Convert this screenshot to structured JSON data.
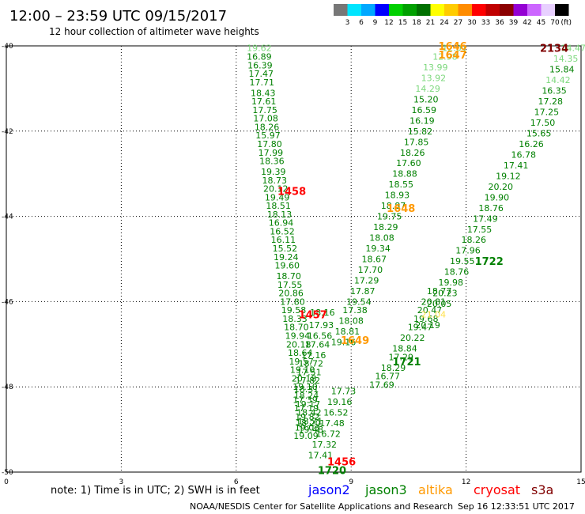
{
  "header": {
    "title": "12:00 – 23:59 UTC 09/15/2017",
    "subtitle": "12 hour collection of altimeter wave heights"
  },
  "color_scale": {
    "labels": [
      "3",
      "6",
      "9",
      "12",
      "15",
      "18",
      "21",
      "24",
      "27",
      "30",
      "33",
      "36",
      "39",
      "42",
      "45",
      "70"
    ],
    "unit": "(ft)",
    "colors": [
      "#777777",
      "#00e5ff",
      "#00a8ff",
      "#0000ff",
      "#00d000",
      "#00a000",
      "#007000",
      "#ffff00",
      "#ffcc00",
      "#ff8c00",
      "#ff0000",
      "#c00000",
      "#8b0000",
      "#9400d3",
      "#cc66ff",
      "#e8d0ff",
      "#000000"
    ]
  },
  "satellites": [
    {
      "name": "jason2",
      "color": "#0000ff"
    },
    {
      "name": "jason3",
      "color": "#008000"
    },
    {
      "name": "altika",
      "color": "#ff9900"
    },
    {
      "name": "cryosat",
      "color": "#ff0000"
    },
    {
      "name": "s3a",
      "color": "#800000"
    }
  ],
  "note": "note: 1) Time is in UTC; 2) SWH is in feet",
  "footer": {
    "credit": "NOAA/NESDIS Center for Satellite Applications and Research",
    "timestamp": "Sep 16 12:33:51 UTC 2017"
  },
  "chart_data": {
    "type": "scatter",
    "xlim": [
      0,
      15
    ],
    "ylim": [
      -50,
      -40
    ],
    "xticks": [
      "0",
      "3",
      "6",
      "9",
      "12",
      "15"
    ],
    "yticks": [
      "-40",
      "-42",
      "-44",
      "-46",
      "-48",
      "-50"
    ],
    "grid": true,
    "series": [
      {
        "name": "track1456",
        "color": "#008000",
        "points": [
          [
            6.6,
            -40.05,
            "19.62",
            "#7dd87d"
          ],
          [
            6.6,
            -40.25,
            "16.89"
          ],
          [
            6.62,
            -40.45,
            "16.39"
          ],
          [
            6.65,
            -40.65,
            "17.47"
          ],
          [
            6.67,
            -40.85,
            "17.71"
          ],
          [
            6.7,
            -41.1,
            "18.43"
          ],
          [
            6.72,
            -41.3,
            "17.61"
          ],
          [
            6.75,
            -41.5,
            "17.75"
          ],
          [
            6.77,
            -41.7,
            "17.08"
          ],
          [
            6.8,
            -41.9,
            "18.26"
          ],
          [
            6.83,
            -42.1,
            "15.97"
          ],
          [
            6.87,
            -42.3,
            "17.80"
          ],
          [
            6.9,
            -42.5,
            "17.99"
          ],
          [
            6.93,
            -42.7,
            "18.36"
          ],
          [
            6.97,
            -42.95,
            "19.39"
          ],
          [
            7.0,
            -43.15,
            "18.73"
          ],
          [
            7.03,
            -43.35,
            "20.12"
          ],
          [
            7.07,
            -43.55,
            "19.49"
          ],
          [
            7.1,
            -43.75,
            "18.51"
          ],
          [
            7.13,
            -43.95,
            "18.13"
          ],
          [
            7.17,
            -44.15,
            "16.94"
          ],
          [
            7.2,
            -44.35,
            "16.52"
          ],
          [
            7.23,
            -44.55,
            "16.11"
          ],
          [
            7.27,
            -44.75,
            "15.52"
          ],
          [
            7.3,
            -44.95,
            "19.24"
          ],
          [
            7.33,
            -45.15,
            "19.60"
          ],
          [
            7.37,
            -45.4,
            "18.70"
          ],
          [
            7.4,
            -45.6,
            "17.55"
          ],
          [
            7.43,
            -45.8,
            "20.86"
          ],
          [
            7.47,
            -46.0,
            "17.80"
          ],
          [
            7.5,
            -46.2,
            "19.58"
          ],
          [
            7.53,
            -46.4,
            "18.33"
          ],
          [
            7.57,
            -46.6,
            "18.70"
          ],
          [
            7.6,
            -46.8,
            "19.94"
          ],
          [
            7.63,
            -47.0,
            "20.18"
          ],
          [
            7.67,
            -47.2,
            "18.64"
          ],
          [
            7.7,
            -47.4,
            "19.57"
          ],
          [
            7.73,
            -47.6,
            "19.10"
          ],
          [
            7.77,
            -47.8,
            "20.18"
          ],
          [
            7.8,
            -48.0,
            "19.10"
          ],
          [
            7.83,
            -48.2,
            "18.24"
          ],
          [
            7.87,
            -48.4,
            "19.17"
          ],
          [
            7.9,
            -48.6,
            "18.42"
          ],
          [
            7.93,
            -48.8,
            "18.71"
          ],
          [
            7.95,
            -49.0,
            "19.48"
          ]
        ]
      },
      {
        "name": "track1457",
        "color": "#008000",
        "points": [
          [
            8.25,
            -46.25,
            "18.16"
          ],
          [
            8.22,
            -46.55,
            "17.93"
          ],
          [
            8.18,
            -46.8,
            "16.56"
          ],
          [
            8.12,
            -47.0,
            "17.64"
          ],
          [
            8.02,
            -47.25,
            "17.16"
          ],
          [
            7.95,
            -47.45,
            "18.72"
          ],
          [
            7.9,
            -47.65,
            "17.51"
          ],
          [
            7.87,
            -47.85,
            "17.82"
          ],
          [
            7.83,
            -48.05,
            "18.31"
          ],
          [
            7.8,
            -48.3,
            "17.39"
          ],
          [
            7.83,
            -48.5,
            "17.19"
          ],
          [
            7.86,
            -48.7,
            "19.82"
          ],
          [
            7.88,
            -48.85,
            "18.20"
          ],
          [
            7.85,
            -48.95,
            "19.03"
          ],
          [
            7.82,
            -49.15,
            "19.09"
          ]
        ]
      },
      {
        "name": "track1648",
        "color": "#008000",
        "points": [
          [
            11.7,
            -40.05,
            "12.01",
            "#7dd87d"
          ],
          [
            11.45,
            -40.25,
            "12.98",
            "#7dd87d"
          ],
          [
            11.2,
            -40.5,
            "13.99",
            "#7dd87d"
          ],
          [
            11.15,
            -40.75,
            "13.92",
            "#7dd87d"
          ],
          [
            11.0,
            -41.0,
            "14.29",
            "#7dd87d"
          ],
          [
            10.95,
            -41.25,
            "15.20"
          ],
          [
            10.9,
            -41.5,
            "16.59"
          ],
          [
            10.85,
            -41.75,
            "16.19"
          ],
          [
            10.8,
            -42.0,
            "15.82"
          ],
          [
            10.7,
            -42.25,
            "17.85"
          ],
          [
            10.6,
            -42.5,
            "18.26"
          ],
          [
            10.5,
            -42.75,
            "17.60"
          ],
          [
            10.4,
            -43.0,
            "18.88"
          ],
          [
            10.3,
            -43.25,
            "18.55"
          ],
          [
            10.2,
            -43.5,
            "18.93"
          ],
          [
            10.1,
            -43.75,
            "18.87"
          ],
          [
            10.0,
            -44.0,
            "19.75"
          ],
          [
            9.9,
            -44.25,
            "18.29"
          ],
          [
            9.8,
            -44.5,
            "18.08"
          ],
          [
            9.7,
            -44.75,
            "19.34"
          ],
          [
            9.6,
            -45.0,
            "18.67"
          ],
          [
            9.5,
            -45.25,
            "17.70"
          ],
          [
            9.4,
            -45.5,
            "17.29"
          ],
          [
            9.3,
            -45.75,
            "17.87"
          ],
          [
            9.2,
            -46.0,
            "19.54"
          ],
          [
            9.1,
            -46.2,
            "17.38"
          ],
          [
            9.0,
            -46.45,
            "18.08"
          ],
          [
            8.9,
            -46.7,
            "18.81"
          ],
          [
            8.8,
            -46.95,
            "19.16"
          ]
        ]
      },
      {
        "name": "track1649",
        "color": "#008000",
        "points": [
          [
            8.8,
            -48.1,
            "17.73"
          ],
          [
            8.7,
            -48.35,
            "19.16"
          ],
          [
            8.6,
            -48.6,
            "16.52"
          ],
          [
            8.5,
            -48.85,
            "17.48"
          ],
          [
            8.4,
            -49.1,
            "16.72"
          ],
          [
            8.3,
            -49.35,
            "17.32"
          ],
          [
            8.2,
            -49.6,
            "17.41"
          ]
        ]
      },
      {
        "name": "track1721",
        "color": "#008000",
        "points": [
          [
            11.3,
            -45.75,
            "18.77"
          ],
          [
            11.15,
            -46.0,
            "20.81"
          ],
          [
            11.05,
            -46.2,
            "20.47"
          ],
          [
            10.95,
            -46.4,
            "19.68"
          ],
          [
            10.8,
            -46.6,
            "19.47"
          ],
          [
            10.6,
            -46.85,
            "20.22"
          ],
          [
            10.4,
            -47.1,
            "18.84"
          ],
          [
            10.3,
            -47.3,
            "17.29"
          ],
          [
            10.1,
            -47.55,
            "18.29"
          ],
          [
            9.95,
            -47.75,
            "16.77"
          ],
          [
            9.8,
            -47.95,
            "17.69"
          ]
        ]
      },
      {
        "name": "track1722",
        "color": "#008000",
        "points": [
          [
            14.8,
            -40.05,
            "14.47",
            "#7dd87d"
          ],
          [
            14.6,
            -40.3,
            "14.35",
            "#7dd87d"
          ],
          [
            14.5,
            -40.55,
            "15.84"
          ],
          [
            14.4,
            -40.8,
            "14.42",
            "#7dd87d"
          ],
          [
            14.3,
            -41.05,
            "16.35"
          ],
          [
            14.2,
            -41.3,
            "17.28"
          ],
          [
            14.1,
            -41.55,
            "17.25"
          ],
          [
            14.0,
            -41.8,
            "17.50"
          ],
          [
            13.9,
            -42.05,
            "15.65"
          ],
          [
            13.7,
            -42.3,
            "16.26"
          ],
          [
            13.5,
            -42.55,
            "16.78"
          ],
          [
            13.3,
            -42.8,
            "17.41"
          ],
          [
            13.1,
            -43.05,
            "19.12"
          ],
          [
            12.9,
            -43.3,
            "20.20"
          ],
          [
            12.8,
            -43.55,
            "19.90"
          ],
          [
            12.65,
            -43.8,
            "18.76"
          ],
          [
            12.5,
            -44.05,
            "17.49"
          ],
          [
            12.35,
            -44.3,
            "17.55"
          ],
          [
            12.2,
            -44.55,
            "18.26"
          ],
          [
            12.05,
            -44.8,
            "17.96"
          ],
          [
            11.9,
            -45.05,
            "19.55"
          ],
          [
            11.75,
            -45.3,
            "18.76"
          ],
          [
            11.6,
            -45.55,
            "19.98"
          ],
          [
            11.45,
            -45.8,
            "20.23"
          ],
          [
            11.3,
            -46.05,
            "20.05"
          ],
          [
            11.15,
            -46.3,
            "21.04",
            "#ffe14d"
          ],
          [
            11.0,
            -46.55,
            "20.19"
          ]
        ]
      }
    ],
    "pass_labels": [
      {
        "text": "1458",
        "x": 7.45,
        "y": -43.4,
        "color": "#ff0000"
      },
      {
        "text": "1457",
        "x": 8.0,
        "y": -46.3,
        "color": "#ff0000"
      },
      {
        "text": "1456",
        "x": 8.75,
        "y": -49.75,
        "color": "#ff0000"
      },
      {
        "text": "1720",
        "x": 8.5,
        "y": -49.95,
        "color": "#008000"
      },
      {
        "text": "1648",
        "x": 10.3,
        "y": -43.8,
        "color": "#ff9900"
      },
      {
        "text": "1649",
        "x": 9.1,
        "y": -46.9,
        "color": "#ff9900"
      },
      {
        "text": "1721",
        "x": 10.45,
        "y": -47.4,
        "color": "#008000"
      },
      {
        "text": "1722",
        "x": 12.6,
        "y": -45.05,
        "color": "#008000"
      },
      {
        "text": "1646",
        "x": 11.65,
        "y": -40.0,
        "color": "#ff9900"
      },
      {
        "text": "1647",
        "x": 11.65,
        "y": -40.2,
        "color": "#ff9900"
      },
      {
        "text": "2134",
        "x": 14.3,
        "y": -40.05,
        "color": "#800000"
      }
    ]
  }
}
